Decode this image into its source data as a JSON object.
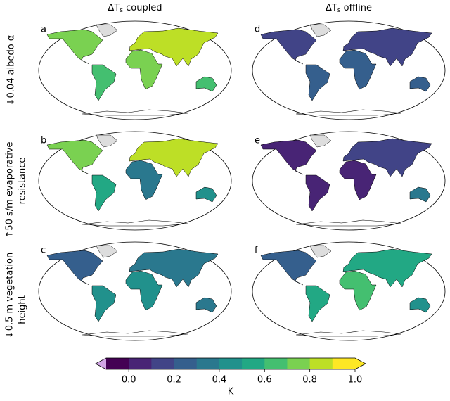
{
  "figure": {
    "columns": [
      {
        "symbol": "ΔT",
        "subscript": "s",
        "text": " coupled"
      },
      {
        "symbol": "ΔT",
        "subscript": "s",
        "text": " offline"
      }
    ],
    "rows": [
      {
        "lines": [
          "↓0.04 albedo α"
        ]
      },
      {
        "lines": [
          "↑50 s/m evaporative",
          "resistance"
        ]
      },
      {
        "lines": [
          "↓0.5 m vegetation",
          "height"
        ]
      }
    ],
    "panels": [
      "a",
      "b",
      "c",
      "d",
      "e",
      "f"
    ],
    "colorbar": {
      "label": "K",
      "lim": [
        -0.1,
        1.0
      ],
      "ticks": [
        {
          "value": 0,
          "label": "0.0"
        },
        0.2,
        0.4,
        0.6,
        0.8,
        {
          "value": 1,
          "label": "1.0"
        }
      ],
      "colors": [
        "#440154",
        "#482475",
        "#414487",
        "#355f8d",
        "#2a788e",
        "#21918c",
        "#22a884",
        "#44bf70",
        "#7ad151",
        "#bddf26",
        "#fde725"
      ],
      "under_color": "#d2a6e6",
      "over_color": "#fde725"
    }
  }
}
